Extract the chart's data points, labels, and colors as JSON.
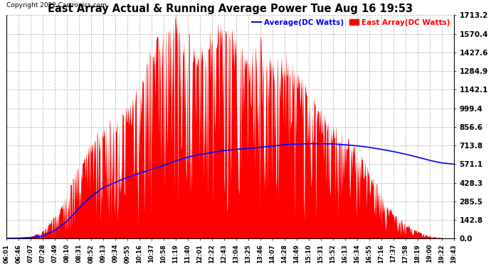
{
  "title": "East Array Actual & Running Average Power Tue Aug 16 19:53",
  "copyright": "Copyright 2022 Cartronics.com",
  "legend_avg": "Average(DC Watts)",
  "legend_east": "East Array(DC Watts)",
  "yticks": [
    0.0,
    142.8,
    285.5,
    428.3,
    571.1,
    713.8,
    856.6,
    999.4,
    1142.1,
    1284.9,
    1427.6,
    1570.4,
    1713.2
  ],
  "ymax": 1713.2,
  "ymin": 0.0,
  "bg_color": "#ffffff",
  "grid_color": "#bbbbbb",
  "area_color": "#ff0000",
  "avg_line_color": "#0000ff",
  "title_color": "#000000",
  "copyright_color": "#000000",
  "xtick_labels": [
    "06:01",
    "06:46",
    "07:07",
    "07:28",
    "07:49",
    "08:10",
    "08:31",
    "08:52",
    "09:13",
    "09:34",
    "09:55",
    "10:16",
    "10:37",
    "10:58",
    "11:19",
    "11:40",
    "12:01",
    "12:22",
    "12:43",
    "13:04",
    "13:25",
    "13:46",
    "14:07",
    "14:28",
    "14:49",
    "15:10",
    "15:31",
    "15:52",
    "16:13",
    "16:34",
    "16:55",
    "17:16",
    "17:37",
    "17:58",
    "18:19",
    "19:00",
    "19:22",
    "19:43"
  ],
  "east_envelope": [
    2,
    5,
    15,
    60,
    180,
    350,
    600,
    750,
    900,
    950,
    1050,
    1200,
    1500,
    1620,
    1713,
    1600,
    1500,
    1650,
    1713,
    1580,
    1400,
    1580,
    1350,
    1500,
    1300,
    1200,
    1000,
    900,
    800,
    700,
    550,
    350,
    200,
    120,
    60,
    20,
    8,
    2
  ],
  "avg_values": [
    2,
    3,
    8,
    20,
    60,
    130,
    230,
    320,
    390,
    430,
    470,
    500,
    530,
    560,
    595,
    625,
    645,
    660,
    675,
    685,
    690,
    700,
    710,
    720,
    725,
    728,
    728,
    726,
    720,
    712,
    700,
    685,
    668,
    648,
    625,
    600,
    580,
    571
  ],
  "spike_seed": 42,
  "n_points_per_interval": 20
}
